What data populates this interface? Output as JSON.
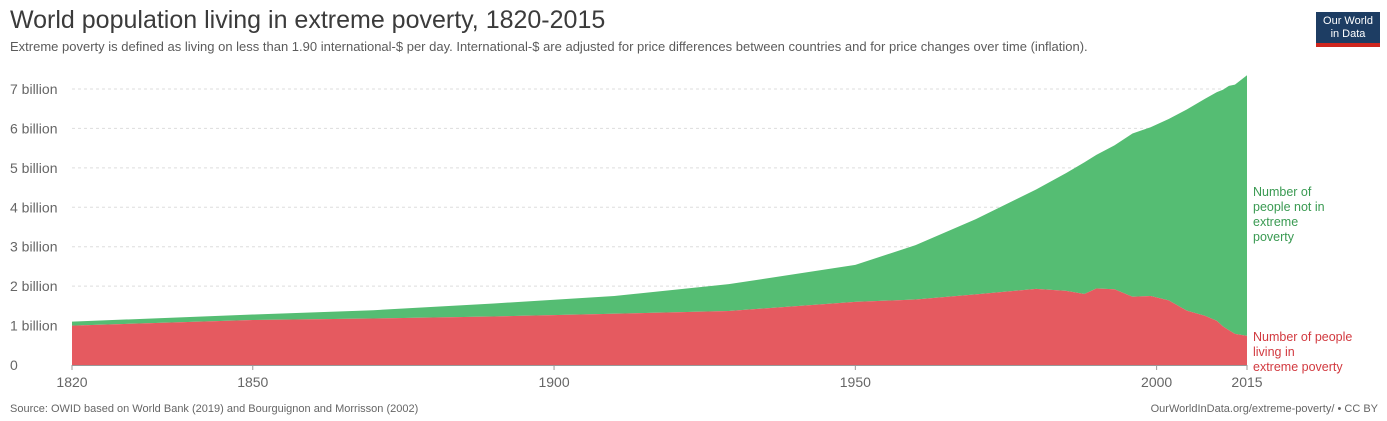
{
  "header": {
    "title": "World population living in extreme poverty, 1820-2015",
    "subtitle": "Extreme poverty is defined as living on less than 1.90 international-$ per day. International-$ are adjusted for price differences between countries and for price changes over time (inflation)."
  },
  "logo": {
    "line1": "Our World",
    "line2": "in Data"
  },
  "footer": {
    "source": "Source: OWID based on World Bank (2019) and Bourguignon and Morrisson (2002)",
    "license": "OurWorldInData.org/extreme-poverty/ • CC BY"
  },
  "colors": {
    "not_poor": "#55bd73",
    "poor": "#e55a60",
    "not_poor_label": "#3a9a52",
    "poor_label": "#d23a40"
  },
  "chart_data": {
    "type": "area",
    "stacked": true,
    "title": "World population living in extreme poverty, 1820-2015",
    "xlim": [
      1820,
      2015
    ],
    "ylim": [
      0,
      7000000000
    ],
    "y_ticks": [
      {
        "value": 0,
        "label": "0"
      },
      {
        "value": 1000000000,
        "label": "1 billion"
      },
      {
        "value": 2000000000,
        "label": "2 billion"
      },
      {
        "value": 3000000000,
        "label": "3 billion"
      },
      {
        "value": 4000000000,
        "label": "4 billion"
      },
      {
        "value": 5000000000,
        "label": "5 billion"
      },
      {
        "value": 6000000000,
        "label": "6 billion"
      },
      {
        "value": 7000000000,
        "label": "7 billion"
      }
    ],
    "x_ticks": [
      {
        "value": 1820,
        "label": "1820"
      },
      {
        "value": 1850,
        "label": "1850"
      },
      {
        "value": 1900,
        "label": "1900"
      },
      {
        "value": 1950,
        "label": "1950"
      },
      {
        "value": 2000,
        "label": "2000"
      },
      {
        "value": 2015,
        "label": "2015"
      }
    ],
    "grid": true,
    "x": [
      1820,
      1850,
      1870,
      1890,
      1910,
      1929,
      1950,
      1960,
      1970,
      1980,
      1985,
      1988,
      1990,
      1993,
      1996,
      1999,
      2002,
      2005,
      2008,
      2010,
      2011,
      2012,
      2013,
      2015
    ],
    "series": [
      {
        "name": "Number of people living in extreme poverty",
        "values": [
          1000000000,
          1140000000,
          1180000000,
          1230000000,
          1300000000,
          1370000000,
          1600000000,
          1660000000,
          1790000000,
          1930000000,
          1880000000,
          1800000000,
          1940000000,
          1920000000,
          1730000000,
          1750000000,
          1640000000,
          1380000000,
          1250000000,
          1120000000,
          980000000,
          880000000,
          790000000,
          740000000
        ]
      },
      {
        "name": "Number of people not in extreme poverty",
        "values": [
          100000000,
          140000000,
          210000000,
          330000000,
          450000000,
          680000000,
          940000000,
          1380000000,
          1910000000,
          2520000000,
          2990000000,
          3340000000,
          3390000000,
          3650000000,
          4140000000,
          4280000000,
          4600000000,
          5100000000,
          5500000000,
          5800000000,
          6000000000,
          6200000000,
          6320000000,
          6610000000
        ]
      }
    ]
  }
}
